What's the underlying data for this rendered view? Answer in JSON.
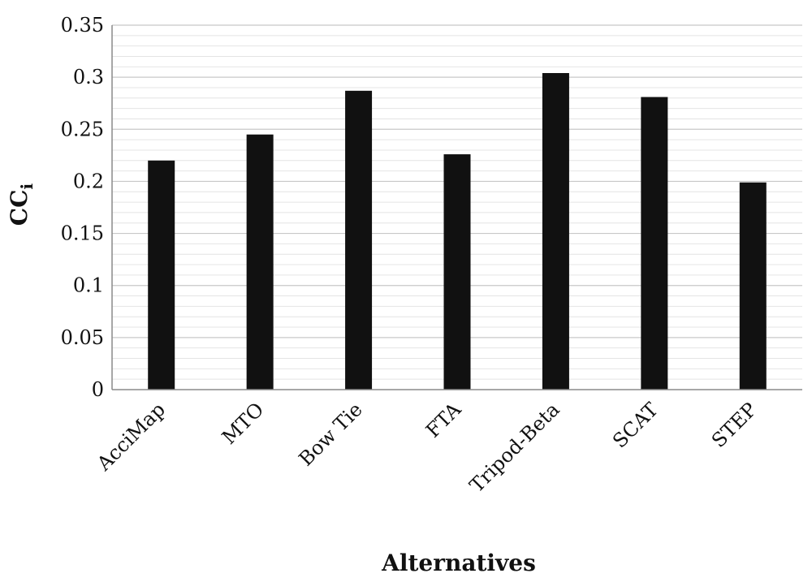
{
  "chart_data": {
    "type": "bar",
    "title": "",
    "xlabel": "Alternatives",
    "ylabel": "CC",
    "ylabel_subscript": "i",
    "categories": [
      "AcciMap",
      "MTO",
      "Bow Tie",
      "FTA",
      "Tripod-Beta",
      "SCAT",
      "STEP"
    ],
    "values": [
      0.22,
      0.245,
      0.287,
      0.226,
      0.304,
      0.281,
      0.199
    ],
    "ylim": [
      0,
      0.35
    ],
    "yticks": [
      0,
      0.05,
      0.1,
      0.15,
      0.2,
      0.25,
      0.3,
      0.35
    ],
    "ytick_labels": [
      "0",
      "0.05",
      "0.1",
      "0.15",
      "0.2",
      "0.25",
      "0.3",
      "0.35"
    ],
    "grid": true,
    "minor_gridlines_per_major": 4,
    "legend": "none",
    "colors": {
      "bar": "#111111",
      "grid_major": "#c8c8c8",
      "grid_minor": "#e4e4e4",
      "axis": "#8a8a8a"
    }
  }
}
